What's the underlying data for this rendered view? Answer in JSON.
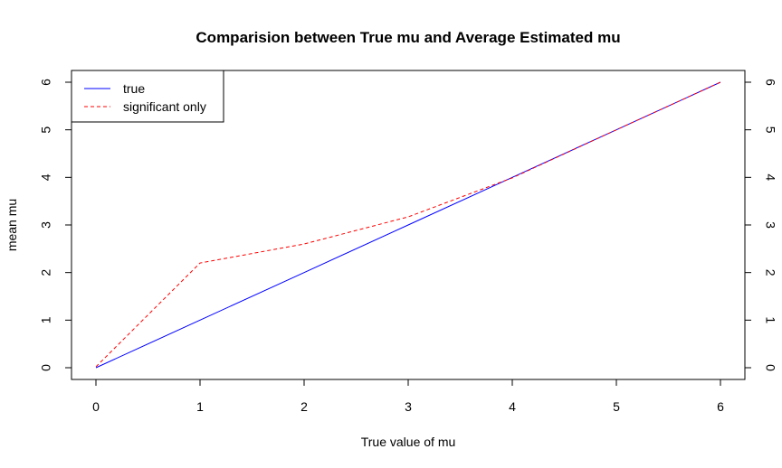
{
  "chart_data": {
    "type": "line",
    "title": "Comparision between True mu and Average Estimated mu",
    "xlabel": "True value of mu",
    "ylabel": "mean mu",
    "x": [
      0,
      1,
      2,
      3,
      4,
      5,
      6
    ],
    "xlim": [
      0,
      6
    ],
    "ylim": [
      0,
      6
    ],
    "x_ticks": [
      "0",
      "1",
      "2",
      "3",
      "4",
      "5",
      "6"
    ],
    "y_ticks": [
      "0",
      "1",
      "2",
      "3",
      "4",
      "5",
      "6"
    ],
    "right_y_ticks": [
      "0",
      "1",
      "2",
      "3",
      "4",
      "5",
      "6"
    ],
    "grid": false,
    "legend_position": "top-left",
    "series": [
      {
        "name": "true",
        "values": [
          0,
          1,
          2,
          3,
          4,
          5,
          6
        ],
        "color": "#0000ff",
        "style": "solid"
      },
      {
        "name": "significant only",
        "values": [
          0.02,
          2.2,
          2.6,
          3.17,
          3.99,
          5.0,
          6.0
        ],
        "color": "#ff0000",
        "style": "dashed"
      }
    ]
  }
}
